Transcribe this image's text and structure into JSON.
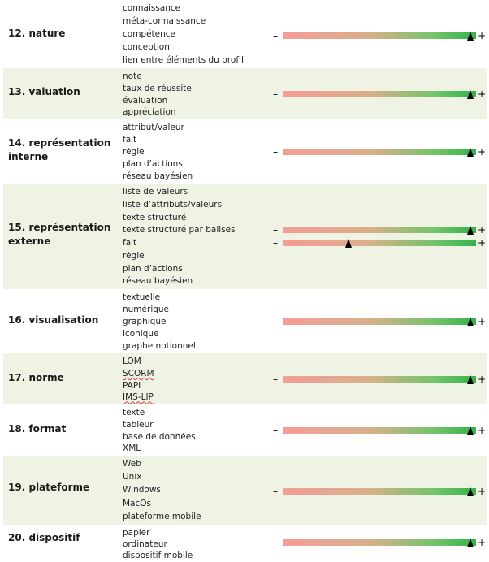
{
  "categories": [
    {
      "number": "12.",
      "title": "nature",
      "items": [
        "connaissance",
        "méta-connaissance",
        "compétence",
        "conception",
        "lien entre éléments du profil"
      ],
      "scales": [
        0.97
      ]
    },
    {
      "number": "13.",
      "title": "valuation",
      "items": [
        "note",
        "taux de réussite",
        "évaluation",
        "appréciation"
      ],
      "scales": [
        0.97
      ]
    },
    {
      "number": "14.",
      "title": "représentation interne",
      "items": [
        "attribut/valeur",
        "fait",
        "règle",
        "plan d’actions",
        "réseau bayésien"
      ],
      "scales": [
        0.97
      ]
    },
    {
      "number": "15.",
      "title": "représentation externe",
      "items": [
        "liste de valeurs",
        "liste d’attributs/valeurs",
        "texte structuré",
        "texte structuré par balises",
        "fait",
        "règle",
        "plan d’actions",
        "réseau bayésien"
      ],
      "scales": [
        0.97,
        0.34
      ]
    },
    {
      "number": "16.",
      "title": "visualisation",
      "items": [
        "textuelle",
        "numérique",
        "graphique",
        "iconique",
        "graphe notionnel"
      ],
      "scales": [
        0.97
      ]
    },
    {
      "number": "17.",
      "title": "norme",
      "items": [
        "LOM",
        "SCORM",
        "PAPI",
        "IMS-LIP"
      ],
      "scales": [
        0.97
      ]
    },
    {
      "number": "18.",
      "title": "format",
      "items": [
        "texte",
        "tableur",
        "base de données",
        "XML"
      ],
      "scales": [
        0.97
      ]
    },
    {
      "number": "19.",
      "title": "plateforme",
      "items": [
        "Web",
        "Unix",
        "Windows",
        "MacOs",
        "plateforme mobile"
      ],
      "scales": [
        0.97
      ]
    },
    {
      "number": "20.",
      "title": "dispositif",
      "items": [
        "papier",
        "ordinateur",
        "dispositif mobile"
      ],
      "scales": [
        0.97
      ]
    }
  ],
  "scale_symbols": {
    "minus": "–",
    "plus": "+"
  },
  "colors": {
    "band_shade": "#eef3e4",
    "gradient_low": "#f59b97",
    "gradient_high": "#36b24c",
    "marker": "#000000"
  }
}
